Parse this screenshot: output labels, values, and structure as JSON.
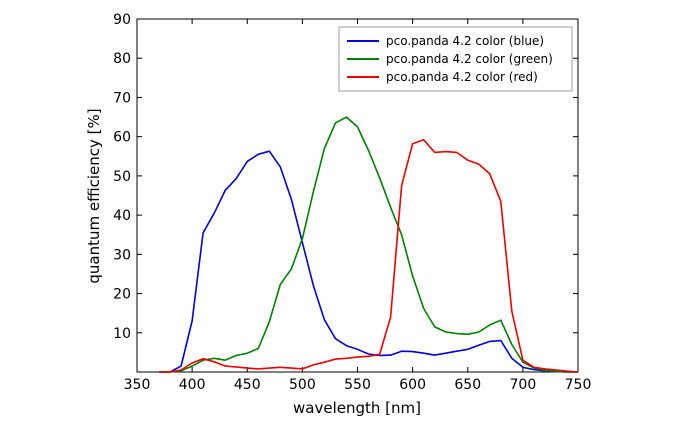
{
  "chart_data": {
    "type": "line",
    "xlabel": "wavelength [nm]",
    "ylabel": "quantum efficiency [%]",
    "xlim": [
      350,
      750
    ],
    "ylim": [
      0,
      90
    ],
    "x_ticks": [
      350,
      400,
      450,
      500,
      550,
      600,
      650,
      700,
      750
    ],
    "y_ticks": [
      10,
      20,
      30,
      40,
      50,
      60,
      70,
      80,
      90
    ],
    "grid": false,
    "legend_position": "top-right",
    "series": [
      {
        "name": "pco.panda 4.2 color (blue)",
        "color": "#0000dd",
        "x": [
          370,
          380,
          390,
          400,
          410,
          420,
          430,
          440,
          450,
          460,
          470,
          480,
          490,
          500,
          510,
          520,
          530,
          540,
          550,
          560,
          570,
          580,
          590,
          600,
          610,
          620,
          630,
          640,
          650,
          660,
          670,
          680,
          690,
          700,
          710,
          720,
          730,
          740,
          750
        ],
        "y": [
          0,
          0,
          1.5,
          13,
          35.5,
          40.5,
          46.3,
          49.3,
          53.7,
          55.5,
          56.3,
          52.3,
          44,
          33,
          22,
          13.3,
          8.5,
          6.7,
          5.8,
          4.6,
          4.2,
          4.3,
          5.3,
          5.2,
          4.8,
          4.3,
          4.8,
          5.3,
          5.8,
          6.8,
          7.8,
          8,
          3.5,
          1.2,
          0.6,
          0.3,
          0.1,
          0,
          0
        ]
      },
      {
        "name": "pco.panda 4.2 color (green)",
        "color": "#008000",
        "x": [
          370,
          380,
          390,
          400,
          410,
          420,
          430,
          440,
          450,
          460,
          470,
          480,
          490,
          500,
          510,
          520,
          530,
          540,
          550,
          560,
          570,
          580,
          590,
          600,
          610,
          620,
          630,
          640,
          650,
          660,
          670,
          680,
          690,
          700,
          710,
          720,
          730,
          740,
          750
        ],
        "y": [
          0,
          0,
          0.3,
          1.5,
          3,
          3.5,
          3,
          4.2,
          4.8,
          6,
          12.8,
          22.3,
          26.3,
          34,
          46,
          57,
          63.5,
          65,
          62.5,
          56.5,
          49.5,
          42,
          35,
          24.5,
          16.2,
          11.5,
          10.2,
          9.8,
          9.6,
          10.2,
          12,
          13.2,
          7,
          2.5,
          1,
          0.4,
          0.2,
          0,
          0
        ]
      },
      {
        "name": "pco.panda 4.2 color (red)",
        "color": "#ee0000",
        "x": [
          370,
          380,
          390,
          400,
          410,
          420,
          430,
          440,
          450,
          460,
          470,
          480,
          490,
          500,
          510,
          520,
          530,
          540,
          550,
          560,
          570,
          580,
          590,
          600,
          610,
          620,
          630,
          640,
          650,
          660,
          670,
          680,
          690,
          700,
          710,
          720,
          730,
          740,
          750
        ],
        "y": [
          0,
          0,
          0.5,
          2.3,
          3.4,
          2.6,
          1.5,
          1.3,
          1,
          0.8,
          1,
          1.2,
          1,
          0.8,
          1.8,
          2.5,
          3.3,
          3.5,
          3.8,
          4,
          4.5,
          14,
          47.5,
          58.2,
          59.2,
          56,
          56.2,
          56,
          54,
          53,
          50.5,
          43.5,
          15.5,
          3,
          1.2,
          0.8,
          0.5,
          0.2,
          0
        ]
      }
    ]
  }
}
